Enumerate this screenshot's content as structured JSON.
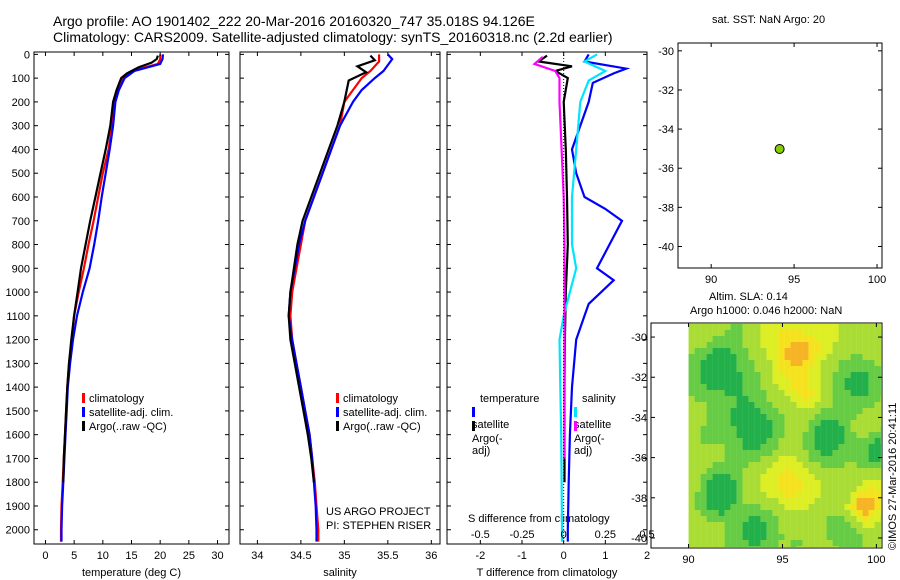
{
  "header": {
    "line1": "Argo profile: AO 1901402_222 20-Mar-2016 20160320_747 35.018S 94.126E",
    "line2": "Climatology: CARS2009. Satellite-adjusted climatology: synTS_20160318.nc (2.2d earlier)"
  },
  "colors": {
    "climatology": "#ff0000",
    "satellite": "#0000ff",
    "argo": "#000000",
    "sat_salinity": "#00e5ff",
    "argo_salinity": "#ff00ff",
    "float_marker": "#88cc00"
  },
  "sst_title": "sat. SST: NaN Argo: 20",
  "sla_title1": "Altim. SLA: 0.14",
  "sla_title2": "Argo h1000: 0.046 h2000: NaN",
  "credit": "©IMOS 27-Mar-2016 20:41:11",
  "project_line1": "US ARGO PROJECT",
  "project_line2": "PI: STEPHEN RISER",
  "diff_top_label": "S difference from climatology",
  "legend_temp": {
    "items": [
      {
        "label": "climatology",
        "color": "#ff0000"
      },
      {
        "label": "satellite-adj. clim.",
        "color": "#0000ff"
      },
      {
        "label": "Argo(..raw -QC)",
        "color": "#000000"
      }
    ]
  },
  "legend_diff": {
    "temp_head": "temperature",
    "sal_head": "salinity",
    "temp_items": [
      {
        "label": "satellite",
        "color": "#0000ff"
      },
      {
        "label": "Argo(-adj)",
        "color": "#000000"
      }
    ],
    "sal_items": [
      {
        "label": "satellite",
        "color": "#00e5ff"
      },
      {
        "label": "Argo(-adj)",
        "color": "#ff00ff"
      }
    ]
  },
  "chart_data": [
    {
      "id": "temperature",
      "type": "line",
      "xlabel": "temperature (deg C)",
      "ylabel": "",
      "xlim": [
        -2,
        32
      ],
      "ylim": [
        2060,
        -10
      ],
      "xticks": [
        0,
        5,
        10,
        15,
        20,
        25,
        30
      ],
      "yticks": [
        0,
        100,
        200,
        300,
        400,
        500,
        600,
        700,
        800,
        900,
        1000,
        1100,
        1200,
        1300,
        1400,
        1500,
        1600,
        1700,
        1800,
        1900,
        2000
      ],
      "series": [
        {
          "name": "climatology",
          "color": "#ff0000",
          "points": [
            [
              20,
              0
            ],
            [
              20,
              20
            ],
            [
              19.6,
              40
            ],
            [
              15,
              70
            ],
            [
              13.5,
              100
            ],
            [
              12.6,
              150
            ],
            [
              12,
              200
            ],
            [
              11.6,
              300
            ],
            [
              11,
              400
            ],
            [
              10,
              500
            ],
            [
              9.2,
              600
            ],
            [
              8.4,
              700
            ],
            [
              7.5,
              800
            ],
            [
              6.7,
              900
            ],
            [
              5.8,
              1000
            ],
            [
              5,
              1100
            ],
            [
              4.6,
              1200
            ],
            [
              4.1,
              1300
            ],
            [
              3.8,
              1400
            ],
            [
              3.6,
              1500
            ],
            [
              3.4,
              1600
            ],
            [
              3.2,
              1700
            ],
            [
              3.0,
              1800
            ],
            [
              2.8,
              1900
            ],
            [
              2.7,
              2000
            ],
            [
              2.7,
              2050
            ]
          ]
        },
        {
          "name": "satellite-adj. clim.",
          "color": "#0000ff",
          "points": [
            [
              20.5,
              0
            ],
            [
              20.4,
              20
            ],
            [
              20,
              40
            ],
            [
              15.5,
              70
            ],
            [
              13.8,
              100
            ],
            [
              12.8,
              150
            ],
            [
              12.2,
              200
            ],
            [
              11.8,
              300
            ],
            [
              11.2,
              400
            ],
            [
              10.5,
              500
            ],
            [
              9.8,
              600
            ],
            [
              9.2,
              700
            ],
            [
              8.5,
              800
            ],
            [
              7.7,
              900
            ],
            [
              6.5,
              1000
            ],
            [
              5.5,
              1100
            ],
            [
              4.8,
              1200
            ],
            [
              4.3,
              1300
            ],
            [
              3.9,
              1400
            ],
            [
              3.7,
              1500
            ],
            [
              3.5,
              1600
            ],
            [
              3.3,
              1700
            ],
            [
              3.1,
              1800
            ],
            [
              2.9,
              1900
            ],
            [
              2.8,
              2000
            ],
            [
              2.8,
              2050
            ]
          ]
        },
        {
          "name": "Argo(..raw -QC)",
          "color": "#000000",
          "points": [
            [
              19.6,
              5
            ],
            [
              19.4,
              20
            ],
            [
              18.5,
              35
            ],
            [
              16.2,
              55
            ],
            [
              14.2,
              80
            ],
            [
              13.2,
              100
            ],
            [
              12.4,
              150
            ],
            [
              11.8,
              200
            ],
            [
              11.3,
              300
            ],
            [
              10.5,
              400
            ],
            [
              9.6,
              500
            ],
            [
              8.7,
              600
            ],
            [
              7.8,
              700
            ],
            [
              7,
              800
            ],
            [
              6.2,
              900
            ],
            [
              5.6,
              1000
            ],
            [
              5,
              1100
            ],
            [
              4.5,
              1200
            ],
            [
              4.1,
              1300
            ],
            [
              3.8,
              1400
            ],
            [
              3.6,
              1500
            ],
            [
              3.4,
              1600
            ],
            [
              3.2,
              1700
            ],
            [
              3.1,
              1800
            ]
          ]
        }
      ]
    },
    {
      "id": "salinity",
      "type": "line",
      "xlabel": "salinity",
      "ylabel": "",
      "xlim": [
        33.8,
        36.1
      ],
      "ylim": [
        2060,
        -10
      ],
      "xticks": [
        34,
        34.5,
        35,
        35.5,
        36
      ],
      "xtick_labels": [
        "34",
        "34.5",
        "35",
        "35.5",
        "36"
      ],
      "series": [
        {
          "name": "climatology",
          "color": "#ff0000",
          "points": [
            [
              35.4,
              0
            ],
            [
              35.4,
              30
            ],
            [
              35.3,
              70
            ],
            [
              35.2,
              100
            ],
            [
              35.1,
              150
            ],
            [
              35.0,
              200
            ],
            [
              34.95,
              300
            ],
            [
              34.85,
              400
            ],
            [
              34.75,
              500
            ],
            [
              34.65,
              600
            ],
            [
              34.55,
              700
            ],
            [
              34.5,
              800
            ],
            [
              34.45,
              900
            ],
            [
              34.4,
              1000
            ],
            [
              34.38,
              1100
            ],
            [
              34.4,
              1200
            ],
            [
              34.45,
              1300
            ],
            [
              34.5,
              1400
            ],
            [
              34.55,
              1500
            ],
            [
              34.6,
              1600
            ],
            [
              34.63,
              1700
            ],
            [
              34.66,
              1800
            ],
            [
              34.68,
              1900
            ],
            [
              34.7,
              2000
            ],
            [
              34.7,
              2050
            ]
          ]
        },
        {
          "name": "satellite-adj. clim.",
          "color": "#0000ff",
          "points": [
            [
              35.5,
              0
            ],
            [
              35.55,
              20
            ],
            [
              35.45,
              70
            ],
            [
              35.35,
              100
            ],
            [
              35.2,
              150
            ],
            [
              35.1,
              200
            ],
            [
              34.95,
              300
            ],
            [
              34.85,
              400
            ],
            [
              34.75,
              500
            ],
            [
              34.65,
              600
            ],
            [
              34.55,
              700
            ],
            [
              34.48,
              800
            ],
            [
              34.43,
              900
            ],
            [
              34.38,
              1000
            ],
            [
              34.36,
              1100
            ],
            [
              34.4,
              1200
            ],
            [
              34.45,
              1300
            ],
            [
              34.5,
              1400
            ],
            [
              34.55,
              1500
            ],
            [
              34.6,
              1600
            ],
            [
              34.63,
              1700
            ],
            [
              34.65,
              1800
            ],
            [
              34.67,
              1900
            ],
            [
              34.68,
              2000
            ],
            [
              34.68,
              2050
            ]
          ]
        },
        {
          "name": "Argo(..raw -QC)",
          "color": "#000000",
          "points": [
            [
              35.3,
              5
            ],
            [
              35.35,
              25
            ],
            [
              35.15,
              50
            ],
            [
              35.25,
              75
            ],
            [
              35.05,
              110
            ],
            [
              35.0,
              200
            ],
            [
              34.92,
              300
            ],
            [
              34.82,
              400
            ],
            [
              34.72,
              500
            ],
            [
              34.62,
              600
            ],
            [
              34.52,
              700
            ],
            [
              34.46,
              800
            ],
            [
              34.42,
              900
            ],
            [
              34.38,
              1000
            ],
            [
              34.36,
              1100
            ],
            [
              34.38,
              1200
            ],
            [
              34.43,
              1300
            ],
            [
              34.48,
              1400
            ],
            [
              34.53,
              1500
            ],
            [
              34.58,
              1600
            ],
            [
              34.62,
              1700
            ],
            [
              34.65,
              1800
            ]
          ]
        }
      ]
    },
    {
      "id": "difference",
      "type": "line",
      "xlabel": "T difference from climatology",
      "ylabel": "",
      "xlim": [
        -2.8,
        2.0
      ],
      "ylim": [
        2060,
        -10
      ],
      "xticks": [
        -2,
        -1,
        0,
        1,
        2
      ],
      "top_tick_labels": [
        "-0.5",
        "-0.25",
        "0",
        "0.25",
        "0.5"
      ],
      "series": [
        {
          "name": "temperature satellite",
          "color": "#0000ff",
          "points": [
            [
              0.6,
              0
            ],
            [
              0.5,
              30
            ],
            [
              1.5,
              60
            ],
            [
              1.2,
              80
            ],
            [
              0.7,
              120
            ],
            [
              0.6,
              200
            ],
            [
              0.4,
              300
            ],
            [
              0.2,
              400
            ],
            [
              0.3,
              500
            ],
            [
              0.5,
              600
            ],
            [
              1.0,
              650
            ],
            [
              1.4,
              700
            ],
            [
              1.1,
              800
            ],
            [
              0.8,
              900
            ],
            [
              1.2,
              950
            ],
            [
              0.9,
              1000
            ],
            [
              0.6,
              1050
            ],
            [
              0.5,
              1100
            ],
            [
              0.3,
              1200
            ],
            [
              0.2,
              1400
            ],
            [
              0.15,
              1600
            ],
            [
              0.12,
              1800
            ],
            [
              0.1,
              2000
            ],
            [
              0.1,
              2050
            ]
          ]
        },
        {
          "name": "temperature Argo(-adj)",
          "color": "#000000",
          "points": [
            [
              -0.4,
              5
            ],
            [
              -0.6,
              30
            ],
            [
              0.2,
              50
            ],
            [
              -0.2,
              70
            ],
            [
              0.1,
              100
            ],
            [
              0.0,
              200
            ],
            [
              0.05,
              400
            ],
            [
              0.08,
              600
            ],
            [
              0.1,
              800
            ],
            [
              0.05,
              1000
            ],
            [
              0.03,
              1200
            ],
            [
              0.02,
              1400
            ],
            [
              0.02,
              1600
            ],
            [
              0.02,
              1800
            ]
          ]
        },
        {
          "name": "salinity satellite",
          "color": "#00e5ff",
          "points": [
            [
              0.8,
              0
            ],
            [
              0.5,
              30
            ],
            [
              1.0,
              70
            ],
            [
              0.6,
              110
            ],
            [
              0.4,
              200
            ],
            [
              0.3,
              400
            ],
            [
              0.2,
              600
            ],
            [
              0.2,
              800
            ],
            [
              0.3,
              900
            ],
            [
              0.15,
              1000
            ],
            [
              0.0,
              1100
            ],
            [
              -0.1,
              1200
            ],
            [
              -0.08,
              1400
            ],
            [
              -0.06,
              1600
            ],
            [
              -0.05,
              1800
            ],
            [
              -0.04,
              2000
            ],
            [
              -0.04,
              2050
            ]
          ]
        },
        {
          "name": "salinity Argo(-adj)",
          "color": "#ff00ff",
          "points": [
            [
              -0.5,
              10
            ],
            [
              -0.7,
              40
            ],
            [
              -0.2,
              70
            ],
            [
              -0.1,
              100
            ],
            [
              -0.1,
              200
            ],
            [
              -0.05,
              400
            ],
            [
              0.0,
              600
            ],
            [
              0.02,
              800
            ],
            [
              0.02,
              1000
            ],
            [
              0.02,
              1200
            ],
            [
              0.02,
              1400
            ],
            [
              0.02,
              1600
            ],
            [
              0.02,
              1700
            ]
          ]
        }
      ]
    },
    {
      "id": "sst_map",
      "type": "scatter",
      "title": "sat. SST: NaN Argo: 20",
      "xlim": [
        88,
        100.3
      ],
      "ylim": [
        -41.1,
        -29.6
      ],
      "xticks": [
        90,
        95,
        100
      ],
      "yticks": [
        -30,
        -32,
        -34,
        -36,
        -38,
        -40
      ],
      "points": [
        [
          94.126,
          -35.018
        ]
      ]
    },
    {
      "id": "sla_map",
      "type": "heatmap",
      "title": "Altim. SLA: 0.14",
      "xlim": [
        88,
        100.3
      ],
      "ylim": [
        -40.5,
        -29.3
      ],
      "xticks": [
        90,
        95,
        100
      ],
      "yticks": [
        -30,
        -32,
        -34,
        -36,
        -38,
        -40
      ]
    }
  ]
}
